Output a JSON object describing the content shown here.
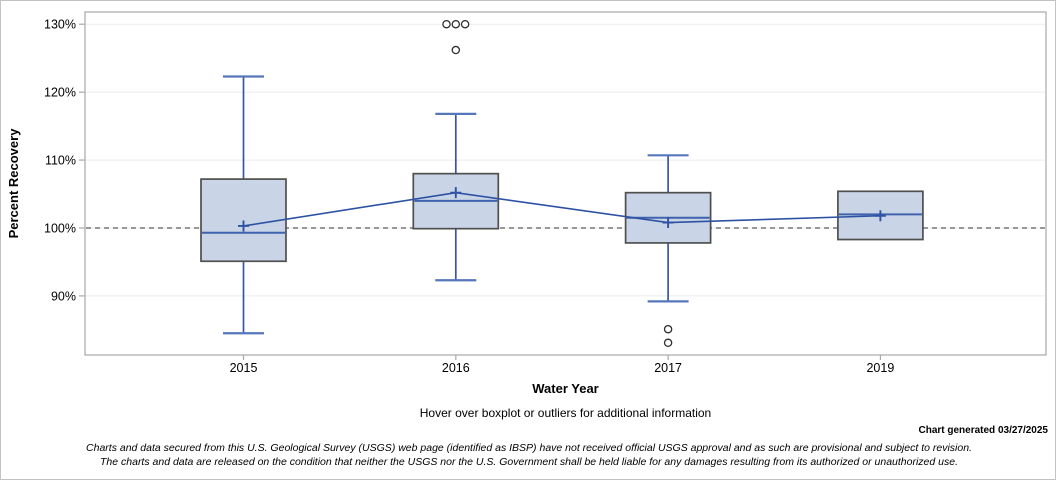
{
  "chart_data": {
    "type": "boxplot",
    "title": "",
    "xlabel": "Water Year",
    "ylabel": "Percent Recovery",
    "categories": [
      "2015",
      "2016",
      "2017",
      "2019"
    ],
    "ylim": [
      81.3,
      131.8
    ],
    "grid": true,
    "y_ticks": [
      {
        "value": 130,
        "label": "130%"
      },
      {
        "value": 120,
        "label": "120%"
      },
      {
        "value": 110,
        "label": "110%"
      },
      {
        "value": 100,
        "label": "100%"
      },
      {
        "value": 90,
        "label": "90%"
      }
    ],
    "reference_line": {
      "value": 100,
      "style": "dashed"
    },
    "mean_connect_line": true,
    "boxes": [
      {
        "category": "2015",
        "whisker_low": 84.5,
        "q1": 95.1,
        "median": 99.3,
        "mean": 100.3,
        "q3": 107.2,
        "whisker_high": 122.3,
        "outliers": []
      },
      {
        "category": "2016",
        "whisker_low": 92.3,
        "q1": 99.9,
        "median": 104.0,
        "mean": 105.2,
        "q3": 108.0,
        "whisker_high": 116.8,
        "outliers": [
          130.0,
          130.0,
          130.0,
          126.2
        ]
      },
      {
        "category": "2017",
        "whisker_low": 89.2,
        "q1": 97.8,
        "median": 101.5,
        "mean": 100.8,
        "q3": 105.2,
        "whisker_high": 110.7,
        "outliers": [
          85.1,
          83.1
        ]
      },
      {
        "category": "2019",
        "whisker_low": 98.4,
        "q1": 98.3,
        "median": 102.0,
        "mean": 101.8,
        "q3": 105.4,
        "whisker_high": 105.3,
        "outliers": []
      }
    ]
  },
  "colors": {
    "box_fill": "#c9d4e6",
    "box_border": "#4f4f4f",
    "whisker": "#3a55a3",
    "whisker_cap": "#5676bb",
    "median": "#3f63ad",
    "mean": "#2e52a3",
    "connect": "#2e52a3",
    "outlier": "#2f2f2f",
    "reference": "#8a8a8a",
    "grid": "#ebebeb",
    "frame": "#a8a8a8",
    "tick": "#a8a8a8",
    "text": "#000000"
  },
  "notes": {
    "hover": "Hover over boxplot or outliers for additional information",
    "generated": "Chart generated 03/27/2025",
    "disclaimer_line1": "Charts and data secured from this U.S. Geological Survey (USGS) web page (identified as IBSP) have not received official USGS approval and as such are provisional and subject to revision.",
    "disclaimer_line2": "The charts and data are released on the condition that neither the USGS nor the U.S. Government shall be held liable for any damages resulting from its authorized or unauthorized use."
  }
}
